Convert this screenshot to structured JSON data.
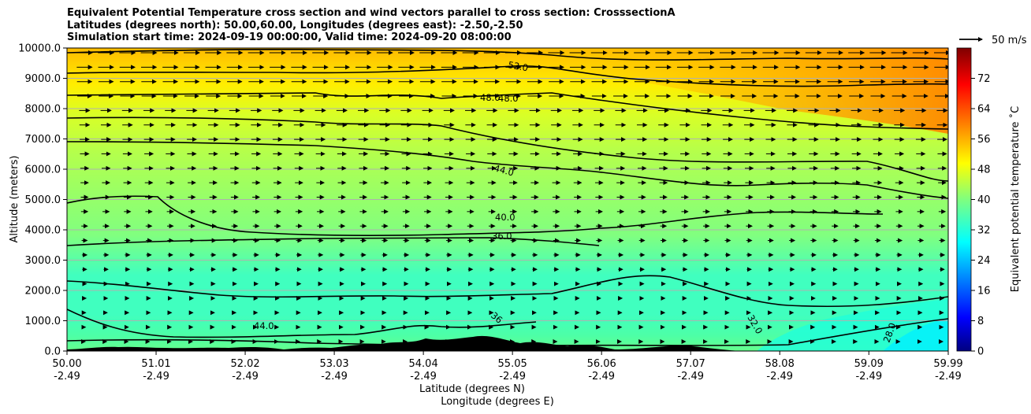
{
  "title_lines": [
    "Equivalent Potential Temperature cross section and wind vectors parallel to cross section: CrosssectionA",
    "Latitudes (degrees north): 50.00,60.00, Longitudes (degrees east): -2.50,-2.50",
    "Simulation start time: 2024-09-19 00:00:00, Valid time: 2024-09-20 08:00:00"
  ],
  "quiver_key_label": "50 m/s",
  "colors": {
    "terrain": "#000000",
    "gridline": "#b0b0b0",
    "contour": "#000000"
  },
  "chart_data": {
    "type": "heatmap",
    "ylabel": "Altitude (meters)",
    "xlabel": "Latitude (degrees N)",
    "xlabel2": "Longitude (degrees E)",
    "colorbar_label": "Equivalent potential temperature ˚C",
    "ylim": [
      0,
      10000
    ],
    "xlim": [
      50.0,
      59.99
    ],
    "colorbar_range": [
      0,
      80
    ],
    "y_ticks": [
      "0.0",
      "1000.0",
      "2000.0",
      "3000.0",
      "4000.0",
      "5000.0",
      "6000.0",
      "7000.0",
      "8000.0",
      "9000.0",
      "10000.0"
    ],
    "x_ticks": [
      {
        "lat": "50.00",
        "lon": "-2.49"
      },
      {
        "lat": "51.01",
        "lon": "-2.49"
      },
      {
        "lat": "52.02",
        "lon": "-2.49"
      },
      {
        "lat": "53.03",
        "lon": "-2.49"
      },
      {
        "lat": "54.04",
        "lon": "-2.49"
      },
      {
        "lat": "55.05",
        "lon": "-2.49"
      },
      {
        "lat": "56.06",
        "lon": "-2.49"
      },
      {
        "lat": "57.07",
        "lon": "-2.49"
      },
      {
        "lat": "58.08",
        "lon": "-2.49"
      },
      {
        "lat": "59.09",
        "lon": "-2.49"
      },
      {
        "lat": "59.99",
        "lon": "-2.49"
      }
    ],
    "colorbar_ticks": [
      "0",
      "8",
      "16",
      "24",
      "32",
      "40",
      "48",
      "56",
      "64",
      "72"
    ],
    "contour_labels": [
      "52.0",
      "48.0",
      "48.0",
      "44.0",
      "40.0",
      "36.0",
      "44.0",
      "36",
      "32.0",
      "28.0"
    ],
    "grid": "horizontal",
    "theta_e_profile": [
      {
        "altitude": 0,
        "value": 38
      },
      {
        "altitude": 1000,
        "value": 36
      },
      {
        "altitude": 2000,
        "value": 35
      },
      {
        "altitude": 3000,
        "value": 36
      },
      {
        "altitude": 4000,
        "value": 40
      },
      {
        "altitude": 5000,
        "value": 42
      },
      {
        "altitude": 6000,
        "value": 44
      },
      {
        "altitude": 7000,
        "value": 46
      },
      {
        "altitude": 8000,
        "value": 48
      },
      {
        "altitude": 9000,
        "value": 51
      },
      {
        "altitude": 10000,
        "value": 54
      }
    ]
  }
}
